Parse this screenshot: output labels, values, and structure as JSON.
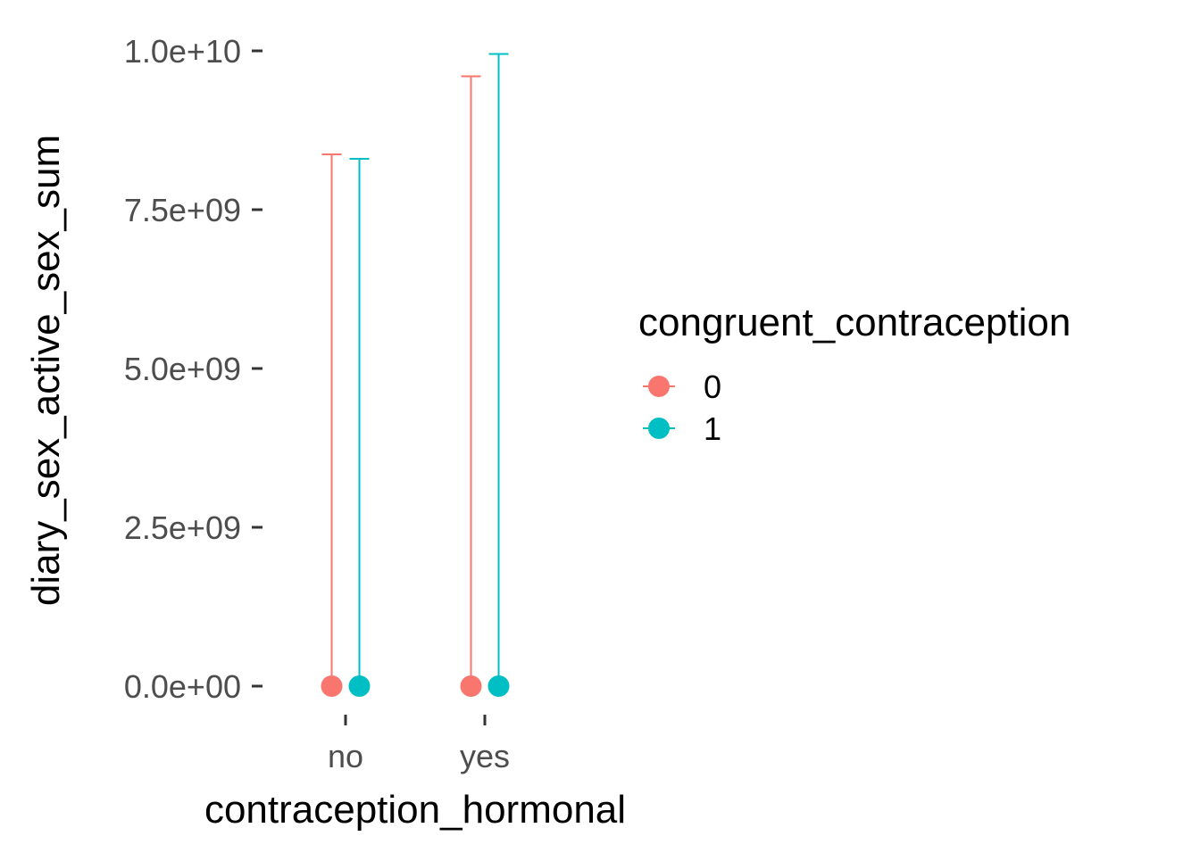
{
  "chart_data": {
    "type": "scatter",
    "xlabel": "contraception_hormonal",
    "ylabel": "diary_sex_active_sex_sum",
    "categories": [
      "no",
      "yes"
    ],
    "ylim": [
      -1000000000.0,
      10000000000.0
    ],
    "y_ticks": [
      {
        "value": 0,
        "label": "0.0e+00"
      },
      {
        "value": 2500000000,
        "label": "2.5e+09"
      },
      {
        "value": 5000000000,
        "label": "5.0e+09"
      },
      {
        "value": 7500000000,
        "label": "7.5e+09"
      },
      {
        "value": 10000000000,
        "label": "1.0e+10"
      }
    ],
    "grid": false,
    "legend": {
      "title": "congruent_contraception",
      "position": "right"
    },
    "series": [
      {
        "name": "0",
        "color": "#F8766D",
        "values": [
          0,
          0
        ],
        "upper": [
          8370000000,
          9600000000
        ]
      },
      {
        "name": "1",
        "color": "#00BFC4",
        "values": [
          0,
          0
        ],
        "upper": [
          8300000000,
          9950000000
        ]
      }
    ]
  }
}
